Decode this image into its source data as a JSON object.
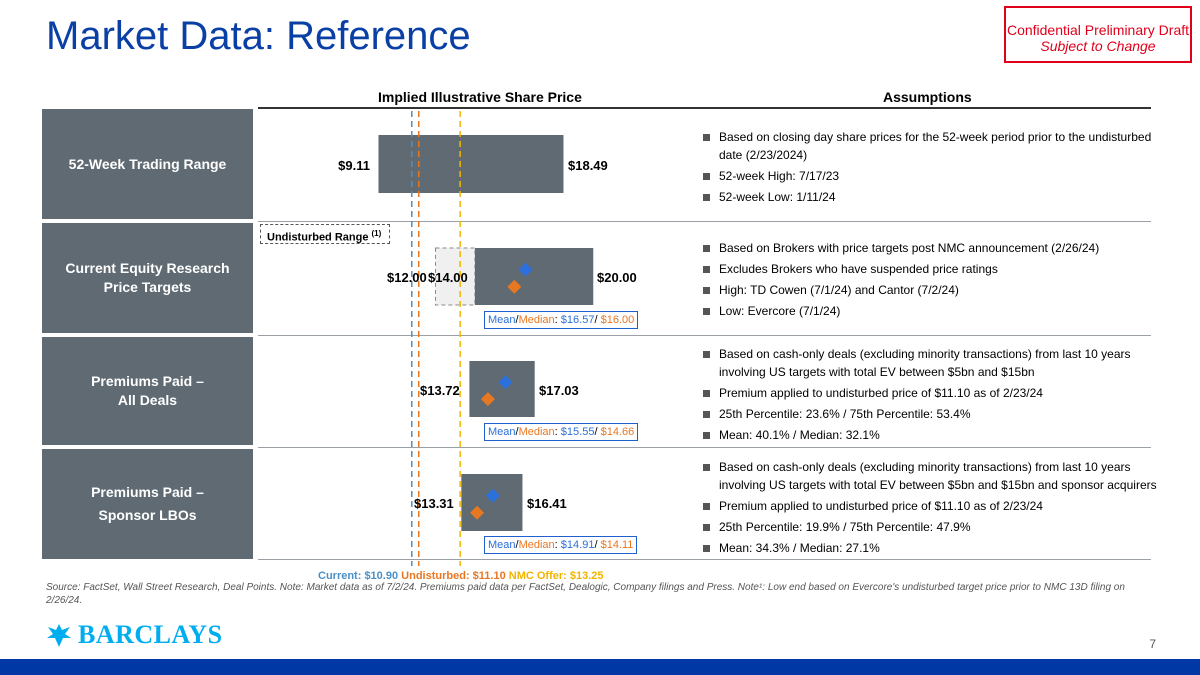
{
  "title": "Market Data: Reference",
  "confidential": {
    "line1": "Confidential Preliminary Draft",
    "line2": "Subject to Change"
  },
  "headers": {
    "chart": "Implied Illustrative Share Price",
    "assumptions": "Assumptions"
  },
  "undisturbed_label": "Undisturbed Range",
  "undisturbed_note": "(1)",
  "rows": [
    {
      "label_line1": "52-Week Trading Range",
      "label_line2": "",
      "low_label": "$9.11",
      "high_label": "$18.49",
      "assumptions": [
        "Based on closing day share prices for the 52-week period prior to the undisturbed date (2/23/2024)",
        "52-week High: 7/17/23",
        "52-week Low: 1/11/24"
      ]
    },
    {
      "label_line1": "Current Equity Research",
      "label_line2": "Price Targets",
      "ext_low_label": "$12.00",
      "low_label": "$14.00",
      "high_label": "$20.00",
      "mean_word": "Mean",
      "median_word": "Median",
      "mean_value": "$16.57",
      "median_value": "$16.00",
      "assumptions": [
        "Based on Brokers with price targets post NMC announcement (2/26/24)",
        "Excludes Brokers who have suspended price ratings",
        "High: TD Cowen (7/1/24) and Cantor (7/2/24)",
        "Low: Evercore (7/1/24)"
      ]
    },
    {
      "label_line1": "Premiums Paid –",
      "label_line2": "All Deals",
      "low_label": "$13.72",
      "high_label": "$17.03",
      "mean_word": "Mean",
      "median_word": "Median",
      "mean_value": "$15.55",
      "median_value": "$14.66",
      "assumptions": [
        "Based on cash-only deals (excluding minority transactions) from last 10 years involving US targets with total EV between $5bn and $15bn",
        "Premium applied to undisturbed price of $11.10 as of 2/23/24",
        "25th Percentile: 23.6% / 75th Percentile: 53.4%",
        "Mean: 40.1% / Median: 32.1%"
      ]
    },
    {
      "label_line1": "Premiums Paid –",
      "label_line2": "Sponsor LBOs",
      "low_label": "$13.31",
      "high_label": "$16.41",
      "mean_word": "Mean",
      "median_word": "Median",
      "mean_value": "$14.91",
      "median_value": "$14.11",
      "assumptions": [
        "Based on cash-only deals (excluding minority transactions) from last 10 years involving US targets with total EV between $5bn and $15bn and sponsor acquirers",
        "Premium applied to undisturbed price of $11.10 as of 2/23/24",
        "25th Percentile: 19.9% / 75th Percentile: 47.9%",
        "Mean: 34.3% / Median: 27.1%"
      ]
    }
  ],
  "reference_lines": {
    "current": "Current: $10.90",
    "undisturbed": "Undisturbed: $11.10",
    "offer": "NMC Offer: $13.25"
  },
  "source": "Source: FactSet, Wall Street Research, Deal Points. Note: Market data as of 7/2/24. Premiums paid data per FactSet, Dealogic, Company filings and Press. Note¹: Low end based on Evercore's undisturbed target price prior to NMC 13D filing on 2/26/24.",
  "logo_text": "BARCLAYS",
  "page_number": "7",
  "colors": {
    "title": "#0a3fa5",
    "bar": "#5f6a72",
    "mean": "#2a6fdb",
    "median": "#e87722",
    "current_line": "#4a90c8",
    "undisturbed_line": "#e87722",
    "offer_line": "#f2b400",
    "footer": "#0039a6"
  },
  "chart_data": {
    "type": "football_field",
    "title": "Implied Illustrative Share Price",
    "categories": [
      "52-Week Trading Range",
      "Current Equity Research Price Targets",
      "Premiums Paid – All Deals",
      "Premiums Paid – Sponsor LBOs"
    ],
    "ranges": [
      {
        "low": 9.11,
        "high": 18.49
      },
      {
        "low": 14.0,
        "high": 20.0,
        "extended_low": 12.0,
        "mean": 16.57,
        "median": 16.0
      },
      {
        "low": 13.72,
        "high": 17.03,
        "mean": 15.55,
        "median": 14.66
      },
      {
        "low": 13.31,
        "high": 16.41,
        "mean": 14.91,
        "median": 14.11
      }
    ],
    "reference_lines": [
      {
        "name": "Current",
        "value": 10.9
      },
      {
        "name": "Undisturbed",
        "value": 11.1
      },
      {
        "name": "NMC Offer",
        "value": 13.25
      }
    ]
  }
}
